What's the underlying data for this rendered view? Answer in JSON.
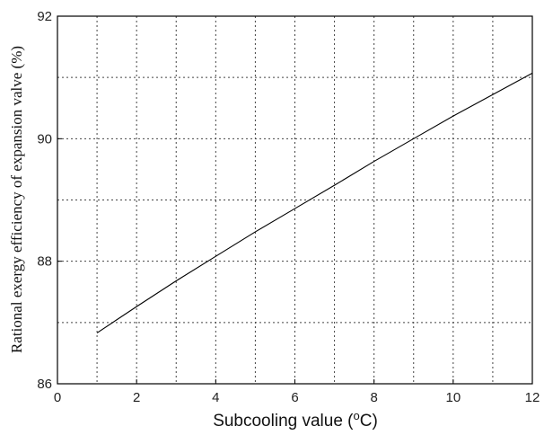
{
  "chart_data": {
    "type": "line",
    "title": "",
    "xlabel_main": "Subcooling value (",
    "xlabel_sup": "o",
    "xlabel_end": "C)",
    "ylabel": "Rational exergy efficiency of expansion valve (%)",
    "xlim": [
      0,
      12
    ],
    "ylim": [
      86,
      92
    ],
    "x_ticks": [
      0,
      2,
      4,
      6,
      8,
      10,
      12
    ],
    "y_ticks": [
      86,
      88,
      90,
      92
    ],
    "x_grid": [
      1,
      2,
      3,
      4,
      5,
      6,
      7,
      8,
      9,
      10,
      11
    ],
    "y_grid": [
      87,
      88,
      89,
      90,
      91
    ],
    "grid": true,
    "series": [
      {
        "x": [
          1,
          2,
          3,
          4,
          5,
          6,
          7,
          8,
          9,
          10,
          11,
          12
        ],
        "values": [
          86.83,
          87.26,
          87.68,
          88.08,
          88.48,
          88.86,
          89.24,
          89.63,
          90.0,
          90.37,
          90.72,
          91.07
        ],
        "color": "#000000"
      }
    ]
  }
}
